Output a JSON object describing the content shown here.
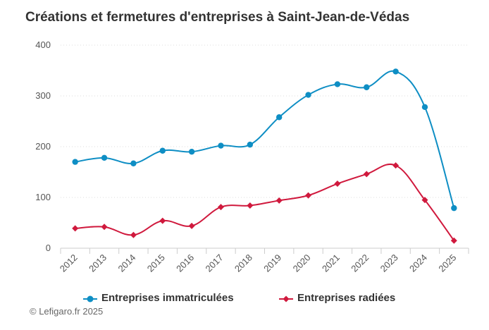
{
  "header": {
    "title": "Créations et fermetures d'entreprises à Saint-Jean-de-Védas"
  },
  "credit": "© Lefigaro.fr 2025",
  "legend": {
    "items": [
      {
        "label": "Entreprises immatriculées",
        "color": "#0e8ec4",
        "marker": "circle"
      },
      {
        "label": "Entreprises radiées",
        "color": "#d0193d",
        "marker": "diamond"
      }
    ]
  },
  "chart_data": {
    "type": "line",
    "title": "Créations et fermetures d'entreprises à Saint-Jean-de-Védas",
    "categories": [
      "2012",
      "2013",
      "2014",
      "2015",
      "2016",
      "2017",
      "2018",
      "2019",
      "2020",
      "2021",
      "2022",
      "2023",
      "2024",
      "2025"
    ],
    "yticks": [
      "0",
      "100",
      "200",
      "300",
      "400"
    ],
    "ylim": [
      0,
      400
    ],
    "grid": true,
    "legend_position": "bottom",
    "series": [
      {
        "name": "Entreprises immatriculées",
        "color": "#0e8ec4",
        "marker": "circle",
        "values": [
          170,
          178,
          167,
          192,
          190,
          202,
          204,
          258,
          302,
          323,
          317,
          348,
          278,
          79
        ]
      },
      {
        "name": "Entreprises radiées",
        "color": "#d0193d",
        "marker": "diamond",
        "values": [
          39,
          42,
          26,
          54,
          44,
          81,
          84,
          94,
          104,
          127,
          146,
          163,
          95,
          15
        ]
      }
    ]
  }
}
